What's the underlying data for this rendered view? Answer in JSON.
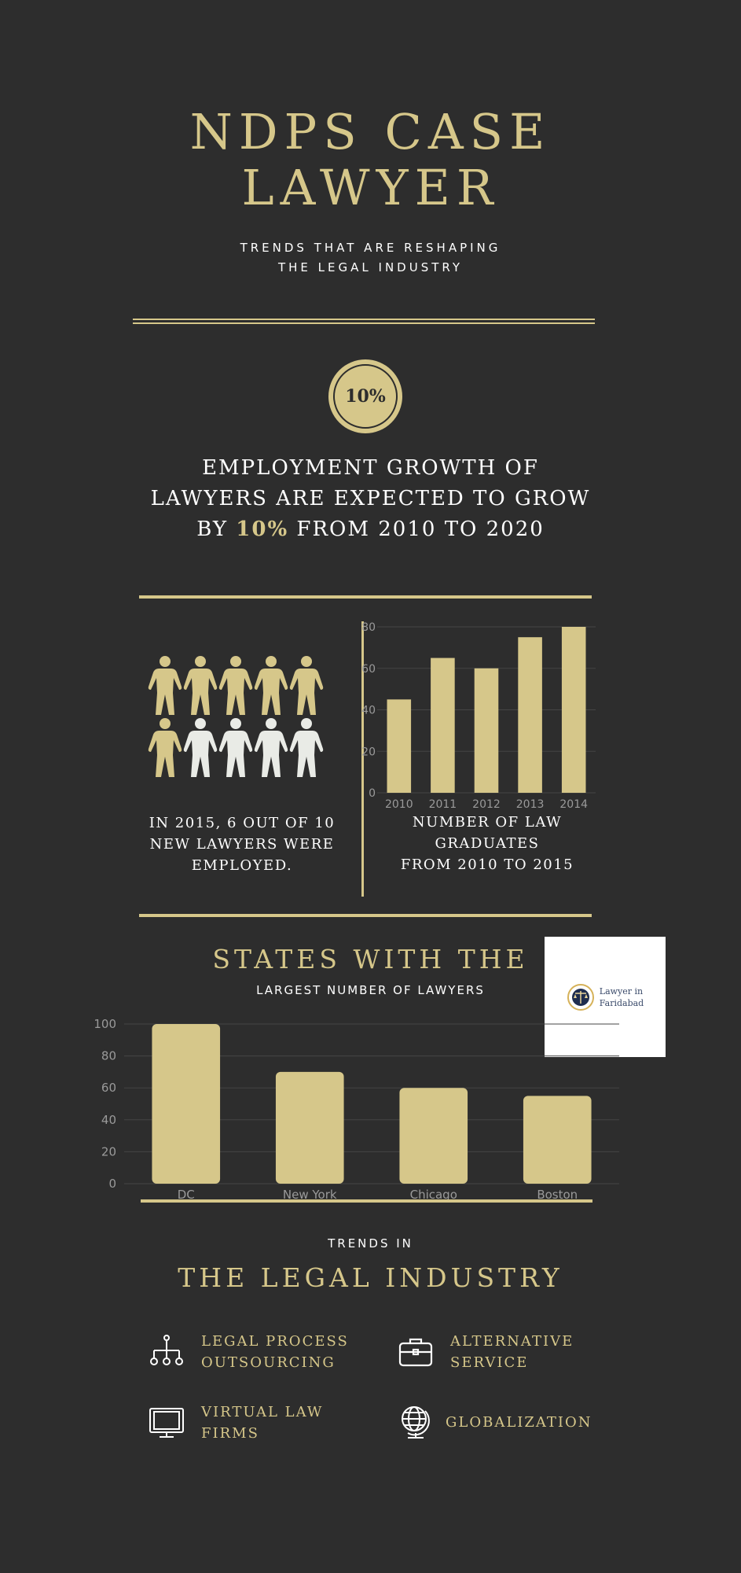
{
  "header": {
    "title_line1": "NDPS CASE",
    "title_line2": "LAWYER",
    "subtitle_line1": "TRENDS THAT ARE RESHAPING",
    "subtitle_line2": "THE LEGAL INDUSTRY"
  },
  "growth": {
    "badge": "10%",
    "line1": "EMPLOYMENT GROWTH OF",
    "line2": "LAWYERS ARE EXPECTED TO GROW",
    "line3_pre": "BY ",
    "line3_hl": "10%",
    "line3_post": " FROM 2010 TO 2020"
  },
  "employment": {
    "employed_count": 6,
    "total_count": 10,
    "caption_line1": "IN 2015, 6 OUT OF 10",
    "caption_line2": "NEW LAWYERS WERE",
    "caption_line3": "EMPLOYED."
  },
  "graduates": {
    "caption_line1": "NUMBER OF LAW",
    "caption_line2": "GRADUATES",
    "caption_line3": "FROM 2010 TO 2015"
  },
  "states": {
    "title": "STATES WITH THE",
    "subtitle": "LARGEST NUMBER OF LAWYERS"
  },
  "logo": {
    "line1": "Lawyer in",
    "line2": "Faridabad"
  },
  "trends": {
    "kicker": "TRENDS IN",
    "title": "THE LEGAL INDUSTRY",
    "items": [
      {
        "line1": "LEGAL PROCESS",
        "line2": "OUTSOURCING",
        "icon": "hierarchy-icon"
      },
      {
        "line1": "ALTERNATIVE",
        "line2": "SERVICE",
        "icon": "briefcase-icon"
      },
      {
        "line1": "VIRTUAL LAW",
        "line2": "FIRMS",
        "icon": "monitor-icon"
      },
      {
        "line1": "GLOBALIZATION",
        "line2": "",
        "icon": "globe-icon"
      }
    ]
  },
  "colors": {
    "background": "#2d2d2d",
    "gold": "#d6c78a",
    "white": "#ffffff",
    "person_light": "#e9ebe6"
  },
  "chart_data": [
    {
      "type": "bar",
      "categories": [
        "2010",
        "2011",
        "2012",
        "2013",
        "2014"
      ],
      "values": [
        45,
        65,
        60,
        75,
        80
      ],
      "ylim": [
        0,
        80
      ],
      "yticks": [
        0,
        20,
        40,
        60,
        80
      ],
      "grid": true
    },
    {
      "type": "bar",
      "categories": [
        "DC",
        "New York",
        "Chicago",
        "Boston"
      ],
      "values": [
        100,
        70,
        60,
        55
      ],
      "ylim": [
        0,
        100
      ],
      "yticks": [
        0,
        20,
        40,
        60,
        80,
        100
      ],
      "grid": true
    }
  ]
}
